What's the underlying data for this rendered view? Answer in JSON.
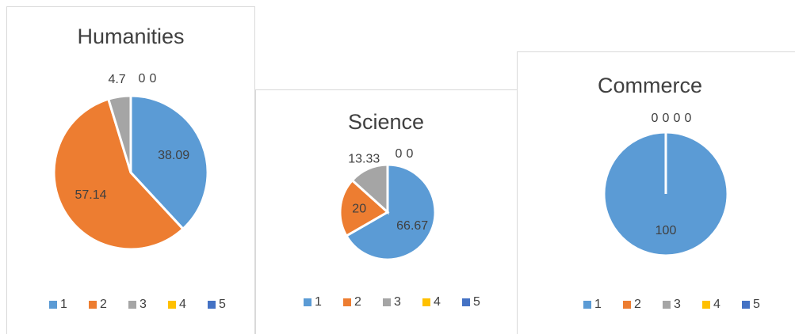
{
  "chart_data": [
    {
      "type": "pie",
      "title": "Humanities",
      "categories": [
        "1",
        "2",
        "3",
        "4",
        "5"
      ],
      "values": [
        38.09,
        57.14,
        4.7,
        0,
        0
      ],
      "colors": [
        "#5b9bd5",
        "#ed7d31",
        "#a5a5a5",
        "#ffc000",
        "#4472c4"
      ]
    },
    {
      "type": "pie",
      "title": "Science",
      "categories": [
        "1",
        "2",
        "3",
        "4",
        "5"
      ],
      "values": [
        66.67,
        20,
        13.33,
        0,
        0
      ],
      "colors": [
        "#5b9bd5",
        "#ed7d31",
        "#a5a5a5",
        "#ffc000",
        "#4472c4"
      ]
    },
    {
      "type": "pie",
      "title": "Commerce",
      "categories": [
        "1",
        "2",
        "3",
        "4",
        "5"
      ],
      "values": [
        100,
        0,
        0,
        0,
        0
      ],
      "colors": [
        "#5b9bd5",
        "#ed7d31",
        "#a5a5a5",
        "#ffc000",
        "#4472c4"
      ]
    }
  ]
}
